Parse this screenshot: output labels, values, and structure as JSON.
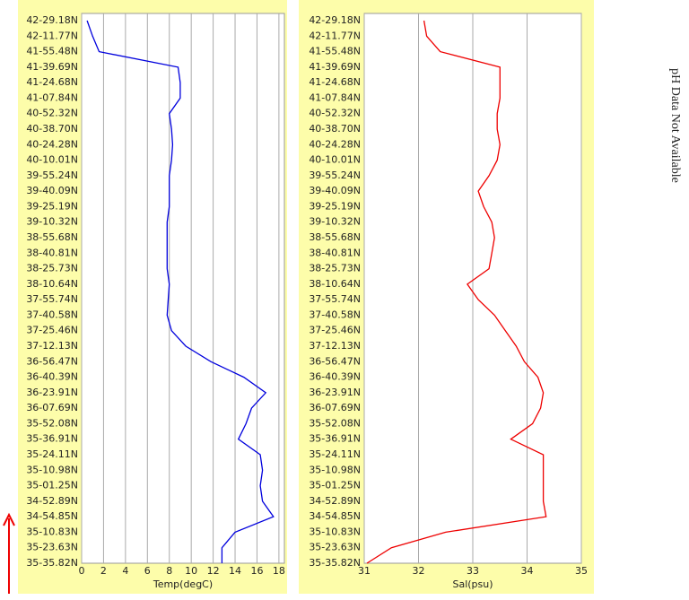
{
  "chart_data": [
    {
      "type": "line",
      "orientation": "horizontal",
      "xlabel": "Temp(degC)",
      "color": "#0000dd",
      "grid": true,
      "categories": [
        "42-29.18N",
        "42-11.77N",
        "41-55.48N",
        "41-39.69N",
        "41-24.68N",
        "41-07.84N",
        "40-52.32N",
        "40-38.70N",
        "40-24.28N",
        "40-10.01N",
        "39-55.24N",
        "39-40.09N",
        "39-25.19N",
        "39-10.32N",
        "38-55.68N",
        "38-40.81N",
        "38-25.73N",
        "38-10.64N",
        "37-55.74N",
        "37-40.58N",
        "37-25.46N",
        "37-12.13N",
        "36-56.47N",
        "36-40.39N",
        "36-23.91N",
        "36-07.69N",
        "35-52.08N",
        "35-36.91N",
        "35-24.11N",
        "35-10.98N",
        "35-01.25N",
        "34-52.89N",
        "34-54.85N",
        "35-10.83N",
        "35-23.63N",
        "35-35.82N"
      ],
      "values": [
        0.5,
        1,
        1.6,
        8.8,
        9,
        9,
        8,
        8.2,
        8.3,
        8.2,
        8,
        8,
        8,
        7.8,
        7.8,
        7.8,
        7.8,
        8,
        7.9,
        7.8,
        8.2,
        9.5,
        11.8,
        14.8,
        16.8,
        15.5,
        15,
        14.3,
        16.3,
        16.5,
        16.3,
        16.5,
        17.5,
        14,
        12.8,
        12.8
      ],
      "xlim": [
        0,
        18.5
      ],
      "xticks": [
        0,
        2,
        4,
        6,
        8,
        10,
        12,
        14,
        16,
        18
      ]
    },
    {
      "type": "line",
      "orientation": "horizontal",
      "xlabel": "Sal(psu)",
      "color": "#ee0000",
      "grid": true,
      "categories": [
        "42-29.18N",
        "42-11.77N",
        "41-55.48N",
        "41-39.69N",
        "41-24.68N",
        "41-07.84N",
        "40-52.32N",
        "40-38.70N",
        "40-24.28N",
        "40-10.01N",
        "39-55.24N",
        "39-40.09N",
        "39-25.19N",
        "39-10.32N",
        "38-55.68N",
        "38-40.81N",
        "38-25.73N",
        "38-10.64N",
        "37-55.74N",
        "37-40.58N",
        "37-25.46N",
        "37-12.13N",
        "36-56.47N",
        "36-40.39N",
        "36-23.91N",
        "36-07.69N",
        "35-52.08N",
        "35-36.91N",
        "35-24.11N",
        "35-10.98N",
        "35-01.25N",
        "34-52.89N",
        "34-54.85N",
        "35-10.83N",
        "35-23.63N",
        "35-35.82N"
      ],
      "values": [
        32.1,
        32.15,
        32.4,
        33.5,
        33.5,
        33.5,
        33.45,
        33.45,
        33.5,
        33.45,
        33.3,
        33.1,
        33.2,
        33.35,
        33.4,
        33.35,
        33.3,
        32.9,
        33.1,
        33.4,
        33.6,
        33.8,
        33.95,
        34.2,
        34.3,
        34.25,
        34.1,
        33.7,
        34.3,
        34.3,
        34.3,
        34.3,
        34.35,
        32.5,
        31.5,
        31.05
      ],
      "xlim": [
        31,
        35
      ],
      "xticks": [
        31,
        32,
        33,
        34,
        35
      ]
    }
  ],
  "note": "pH Data Not Available"
}
